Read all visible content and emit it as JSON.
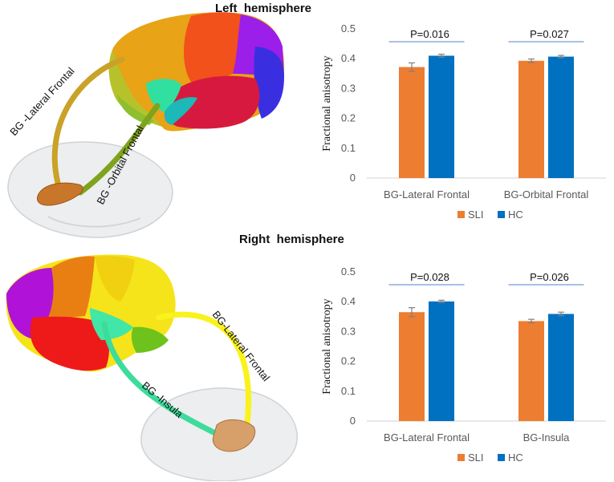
{
  "titles": {
    "left": "Left  hemisphere",
    "right": "Right  hemisphere"
  },
  "tract_labels": {
    "left": [
      "BG -Lateral Frontal",
      "BG -Orbital Frontal"
    ],
    "right": [
      "BG-Lateral Frontal",
      "BG -Insula"
    ]
  },
  "colors": {
    "SLI": "#ED7D31",
    "HC": "#0070C0",
    "pline": "#8FAADC"
  },
  "chart_data": [
    {
      "type": "bar",
      "panel": "left-hemisphere",
      "categories": [
        "BG-Lateral Frontal",
        "BG-Orbital Frontal"
      ],
      "series": [
        {
          "name": "SLI",
          "values": [
            0.372,
            0.393
          ],
          "errors": [
            0.014,
            0.006
          ]
        },
        {
          "name": "HC",
          "values": [
            0.41,
            0.407
          ],
          "errors": [
            0.005,
            0.004
          ]
        }
      ],
      "ylabel": "Fractional anisotropy",
      "ylim": [
        0,
        0.5
      ],
      "yticks": [
        "0",
        "0.1",
        "0.2",
        "0.3",
        "0.4",
        "0.5"
      ],
      "pvalues": [
        "P=0.016",
        "P=0.027"
      ],
      "legend": [
        "SLI",
        "HC"
      ],
      "legend_position": "bottom",
      "grid": false
    },
    {
      "type": "bar",
      "panel": "right-hemisphere",
      "categories": [
        "BG-Lateral Frontal",
        "BG-Insula"
      ],
      "series": [
        {
          "name": "SLI",
          "values": [
            0.365,
            0.335
          ],
          "errors": [
            0.015,
            0.006
          ]
        },
        {
          "name": "HC",
          "values": [
            0.401,
            0.359
          ],
          "errors": [
            0.004,
            0.006
          ]
        }
      ],
      "ylabel": "Fractional anisotropy",
      "ylim": [
        0,
        0.5
      ],
      "yticks": [
        "0",
        "0.1",
        "0.2",
        "0.3",
        "0.4",
        "0.5"
      ],
      "pvalues": [
        "P=0.028",
        "P=0.026"
      ],
      "legend": [
        "SLI",
        "HC"
      ],
      "legend_position": "bottom",
      "grid": false
    }
  ]
}
